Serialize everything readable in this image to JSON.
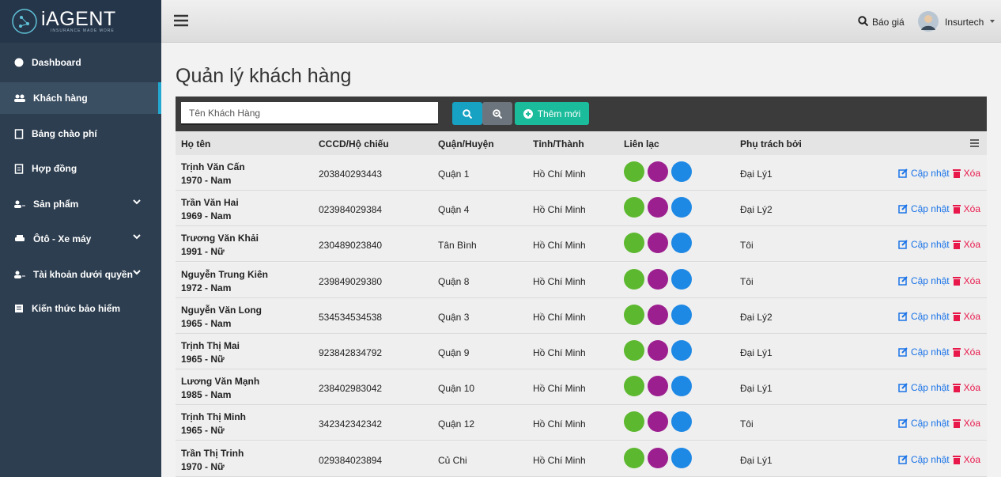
{
  "sidebar": {
    "logo": "iAGENT",
    "tagline": "INSURANCE MADE MORE",
    "menu": [
      "Dashboard",
      "Khách hàng",
      "Bảng chào phí",
      "Hợp đồng",
      "Sản phẩm",
      "Ôtô - Xe máy",
      "Tài khoản dưới quyền",
      "Kiến thức bảo hiểm"
    ]
  },
  "topbar": {
    "quote": "Báo giá",
    "user": "Insurtech"
  },
  "page": {
    "title": "Quản lý khách hàng"
  },
  "toolbar": {
    "search_placeholder": "Tên Khách Hàng",
    "add_button": "Thêm mới"
  },
  "table": {
    "headers": [
      "Họ tên",
      "CCCD/Hộ chiếu",
      "Quận/Huyện",
      "Tỉnh/Thành",
      "Liên lạc",
      "Phụ trách bởi"
    ],
    "actions": {
      "update": "Cập nhật",
      "delete": "Xóa"
    },
    "rows": [
      {
        "name": "Trịnh Văn Cấn",
        "birth_gender": "1970 - Nam",
        "id": "203840293443",
        "district": "Quận 1",
        "city": "Hồ Chí Minh",
        "owner": "Đại Lý1"
      },
      {
        "name": "Trần Văn Hai",
        "birth_gender": "1969 - Nam",
        "id": "023984029384",
        "district": "Quận 4",
        "city": "Hồ Chí Minh",
        "owner": "Đại Lý2"
      },
      {
        "name": "Trương Văn Khải",
        "birth_gender": "1991 - Nữ",
        "id": "230489023840",
        "district": "Tân Bình",
        "city": "Hồ Chí Minh",
        "owner": "Tôi"
      },
      {
        "name": "Nguyễn Trung Kiên",
        "birth_gender": "1972 - Nam",
        "id": "239849029380",
        "district": "Quận 8",
        "city": "Hồ Chí Minh",
        "owner": "Tôi"
      },
      {
        "name": "Nguyễn Văn Long",
        "birth_gender": "1965 - Nam",
        "id": "534534534538",
        "district": "Quận 3",
        "city": "Hồ Chí Minh",
        "owner": "Đại Lý2"
      },
      {
        "name": "Trịnh Thị Mai",
        "birth_gender": "1965 - Nữ",
        "id": "923842834792",
        "district": "Quận 9",
        "city": "Hồ Chí Minh",
        "owner": "Đại Lý1"
      },
      {
        "name": "Lương Văn Mạnh",
        "birth_gender": "1985 - Nam",
        "id": "238402983042",
        "district": "Quận 10",
        "city": "Hồ Chí Minh",
        "owner": "Đại Lý1"
      },
      {
        "name": "Trịnh Thị Minh",
        "birth_gender": "1965 - Nữ",
        "id": "342342342342",
        "district": "Quận 12",
        "city": "Hồ Chí Minh",
        "owner": "Tôi"
      },
      {
        "name": "Trần Thị Trinh",
        "birth_gender": "1970 - Nữ",
        "id": "029384023894",
        "district": "Củ Chi",
        "city": "Hồ Chí Minh",
        "owner": "Đại Lý1"
      }
    ]
  }
}
